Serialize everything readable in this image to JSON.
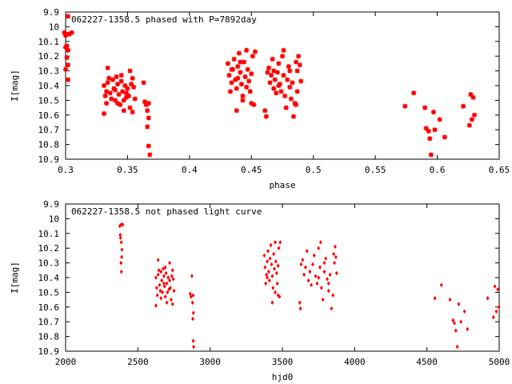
{
  "colors": {
    "points": "#ff0000",
    "axes": "#000000",
    "background": "#ffffff"
  },
  "chart_data": [
    {
      "type": "scatter",
      "title": "062227-1358.5 phased with P=7892day",
      "xlabel": "phase",
      "ylabel": "I[mag]",
      "xlim": [
        0.3,
        0.65
      ],
      "ylim": [
        9.9,
        10.9
      ],
      "y_inverted": true,
      "grid": false,
      "marker": "star",
      "x_ticks": [
        "0.3",
        "0.35",
        "0.4",
        "0.45",
        "0.5",
        "0.55",
        "0.6",
        "0.65"
      ],
      "y_ticks": [
        "9.9",
        "10",
        "10.1",
        "10.2",
        "10.3",
        "10.4",
        "10.5",
        "10.6",
        "10.7",
        "10.8",
        "10.9"
      ],
      "points": [
        [
          0.299,
          10.04
        ],
        [
          0.3,
          10.06
        ],
        [
          0.301,
          10.05
        ],
        [
          0.302,
          9.93
        ],
        [
          0.303,
          10.05
        ],
        [
          0.305,
          10.04
        ],
        [
          0.301,
          10.13
        ],
        [
          0.302,
          10.16
        ],
        [
          0.301,
          10.21
        ],
        [
          0.302,
          10.26
        ],
        [
          0.3,
          10.29
        ],
        [
          0.302,
          10.36
        ],
        [
          0.3,
          10.14
        ],
        [
          0.331,
          10.4
        ],
        [
          0.332,
          10.47
        ],
        [
          0.333,
          10.52
        ],
        [
          0.334,
          10.38
        ],
        [
          0.335,
          10.35
        ],
        [
          0.336,
          10.45
        ],
        [
          0.337,
          10.49
        ],
        [
          0.338,
          10.36
        ],
        [
          0.339,
          10.42
        ],
        [
          0.34,
          10.5
        ],
        [
          0.341,
          10.34
        ],
        [
          0.342,
          10.39
        ],
        [
          0.343,
          10.46
        ],
        [
          0.344,
          10.53
        ],
        [
          0.345,
          10.37
        ],
        [
          0.346,
          10.44
        ],
        [
          0.347,
          10.5
        ],
        [
          0.348,
          10.4
        ],
        [
          0.349,
          10.48
        ],
        [
          0.35,
          10.42
        ],
        [
          0.351,
          10.47
        ],
        [
          0.352,
          10.55
        ],
        [
          0.353,
          10.39
        ],
        [
          0.354,
          10.35
        ],
        [
          0.355,
          10.41
        ],
        [
          0.356,
          10.49
        ],
        [
          0.334,
          10.28
        ],
        [
          0.345,
          10.33
        ],
        [
          0.352,
          10.3
        ],
        [
          0.331,
          10.59
        ],
        [
          0.347,
          10.57
        ],
        [
          0.354,
          10.58
        ],
        [
          0.333,
          10.44
        ],
        [
          0.34,
          10.43
        ],
        [
          0.342,
          10.52
        ],
        [
          0.349,
          10.45
        ],
        [
          0.363,
          10.38
        ],
        [
          0.364,
          10.51
        ],
        [
          0.365,
          10.53
        ],
        [
          0.366,
          10.57
        ],
        [
          0.367,
          10.52
        ],
        [
          0.367,
          10.62
        ],
        [
          0.366,
          10.68
        ],
        [
          0.367,
          10.81
        ],
        [
          0.368,
          10.87
        ],
        [
          0.431,
          10.25
        ],
        [
          0.432,
          10.33
        ],
        [
          0.433,
          10.44
        ],
        [
          0.434,
          10.38
        ],
        [
          0.435,
          10.29
        ],
        [
          0.436,
          10.22
        ],
        [
          0.437,
          10.36
        ],
        [
          0.438,
          10.42
        ],
        [
          0.439,
          10.27
        ],
        [
          0.44,
          10.18
        ],
        [
          0.441,
          10.31
        ],
        [
          0.442,
          10.39
        ],
        [
          0.443,
          10.47
        ],
        [
          0.444,
          10.24
        ],
        [
          0.445,
          10.34
        ],
        [
          0.446,
          10.16
        ],
        [
          0.447,
          10.29
        ],
        [
          0.448,
          10.37
        ],
        [
          0.449,
          10.44
        ],
        [
          0.45,
          10.32
        ],
        [
          0.451,
          10.2
        ],
        [
          0.452,
          10.53
        ],
        [
          0.453,
          10.17
        ],
        [
          0.438,
          10.57
        ],
        [
          0.443,
          10.5
        ],
        [
          0.45,
          10.52
        ],
        [
          0.434,
          10.29
        ],
        [
          0.441,
          10.24
        ],
        [
          0.446,
          10.41
        ],
        [
          0.439,
          10.35
        ],
        [
          0.461,
          10.57
        ],
        [
          0.462,
          10.61
        ],
        [
          0.463,
          10.31
        ],
        [
          0.464,
          10.28
        ],
        [
          0.465,
          10.38
        ],
        [
          0.466,
          10.33
        ],
        [
          0.467,
          10.22
        ],
        [
          0.468,
          10.42
        ],
        [
          0.469,
          10.36
        ],
        [
          0.47,
          10.45
        ],
        [
          0.471,
          10.31
        ],
        [
          0.472,
          10.25
        ],
        [
          0.473,
          10.39
        ],
        [
          0.474,
          10.44
        ],
        [
          0.475,
          10.2
        ],
        [
          0.476,
          10.33
        ],
        [
          0.477,
          10.47
        ],
        [
          0.478,
          10.55
        ],
        [
          0.479,
          10.36
        ],
        [
          0.48,
          10.27
        ],
        [
          0.481,
          10.41
        ],
        [
          0.482,
          10.49
        ],
        [
          0.483,
          10.38
        ],
        [
          0.484,
          10.61
        ],
        [
          0.485,
          10.52
        ],
        [
          0.486,
          10.24
        ],
        [
          0.487,
          10.3
        ],
        [
          0.488,
          10.2
        ],
        [
          0.489,
          10.26
        ],
        [
          0.49,
          10.37
        ],
        [
          0.476,
          10.16
        ],
        [
          0.481,
          10.3
        ],
        [
          0.487,
          10.44
        ],
        [
          0.472,
          10.4
        ],
        [
          0.468,
          10.3
        ],
        [
          0.486,
          10.53
        ],
        [
          0.574,
          10.54
        ],
        [
          0.581,
          10.45
        ],
        [
          0.59,
          10.55
        ],
        [
          0.591,
          10.69
        ],
        [
          0.593,
          10.71
        ],
        [
          0.594,
          10.76
        ],
        [
          0.595,
          10.87
        ],
        [
          0.597,
          10.58
        ],
        [
          0.598,
          10.7
        ],
        [
          0.602,
          10.63
        ],
        [
          0.606,
          10.75
        ],
        [
          0.621,
          10.54
        ],
        [
          0.626,
          10.67
        ],
        [
          0.627,
          10.46
        ],
        [
          0.628,
          10.63
        ],
        [
          0.629,
          10.48
        ],
        [
          0.63,
          10.6
        ]
      ]
    },
    {
      "type": "scatter",
      "title": "062227-1358.5 not phased light curve",
      "xlabel": "hjd0",
      "ylabel": "I[mag]",
      "xlim": [
        2000,
        5000
      ],
      "ylim": [
        9.9,
        10.9
      ],
      "y_inverted": true,
      "grid": false,
      "marker": "dot",
      "x_ticks": [
        "2000",
        "2500",
        "3000",
        "3500",
        "4000",
        "4500",
        "5000"
      ],
      "y_ticks": [
        "9.9",
        "10",
        "10.1",
        "10.2",
        "10.3",
        "10.4",
        "10.5",
        "10.6",
        "10.7",
        "10.8",
        "10.9"
      ],
      "points": [
        [
          2375,
          10.05
        ],
        [
          2385,
          10.04
        ],
        [
          2395,
          10.04
        ],
        [
          2380,
          10.13
        ],
        [
          2385,
          10.16
        ],
        [
          2390,
          10.21
        ],
        [
          2388,
          10.26
        ],
        [
          2383,
          10.3
        ],
        [
          2386,
          10.36
        ],
        [
          2378,
          10.11
        ],
        [
          2625,
          10.4
        ],
        [
          2630,
          10.47
        ],
        [
          2635,
          10.52
        ],
        [
          2640,
          10.38
        ],
        [
          2645,
          10.35
        ],
        [
          2650,
          10.45
        ],
        [
          2655,
          10.49
        ],
        [
          2660,
          10.36
        ],
        [
          2665,
          10.42
        ],
        [
          2670,
          10.5
        ],
        [
          2675,
          10.34
        ],
        [
          2680,
          10.39
        ],
        [
          2685,
          10.46
        ],
        [
          2690,
          10.53
        ],
        [
          2695,
          10.37
        ],
        [
          2700,
          10.44
        ],
        [
          2705,
          10.5
        ],
        [
          2710,
          10.4
        ],
        [
          2715,
          10.48
        ],
        [
          2720,
          10.42
        ],
        [
          2725,
          10.47
        ],
        [
          2730,
          10.55
        ],
        [
          2735,
          10.39
        ],
        [
          2740,
          10.35
        ],
        [
          2745,
          10.41
        ],
        [
          2750,
          10.49
        ],
        [
          2640,
          10.28
        ],
        [
          2690,
          10.33
        ],
        [
          2720,
          10.3
        ],
        [
          2625,
          10.59
        ],
        [
          2700,
          10.57
        ],
        [
          2740,
          10.58
        ],
        [
          2660,
          10.54
        ],
        [
          2680,
          10.44
        ],
        [
          2862,
          10.51
        ],
        [
          2868,
          10.53
        ],
        [
          2874,
          10.39
        ],
        [
          2878,
          10.57
        ],
        [
          2882,
          10.52
        ],
        [
          2884,
          10.64
        ],
        [
          2880,
          10.68
        ],
        [
          2883,
          10.83
        ],
        [
          2886,
          10.87
        ],
        [
          3375,
          10.25
        ],
        [
          3380,
          10.33
        ],
        [
          3385,
          10.44
        ],
        [
          3390,
          10.38
        ],
        [
          3395,
          10.29
        ],
        [
          3400,
          10.22
        ],
        [
          3405,
          10.36
        ],
        [
          3410,
          10.42
        ],
        [
          3415,
          10.27
        ],
        [
          3420,
          10.18
        ],
        [
          3425,
          10.31
        ],
        [
          3430,
          10.39
        ],
        [
          3435,
          10.47
        ],
        [
          3440,
          10.24
        ],
        [
          3445,
          10.34
        ],
        [
          3450,
          10.16
        ],
        [
          3455,
          10.29
        ],
        [
          3460,
          10.37
        ],
        [
          3465,
          10.44
        ],
        [
          3470,
          10.32
        ],
        [
          3475,
          10.2
        ],
        [
          3480,
          10.53
        ],
        [
          3485,
          10.16
        ],
        [
          3430,
          10.57
        ],
        [
          3450,
          10.5
        ],
        [
          3470,
          10.52
        ],
        [
          3395,
          10.4
        ],
        [
          3620,
          10.57
        ],
        [
          3625,
          10.61
        ],
        [
          3630,
          10.31
        ],
        [
          3640,
          10.28
        ],
        [
          3650,
          10.38
        ],
        [
          3660,
          10.33
        ],
        [
          3670,
          10.22
        ],
        [
          3680,
          10.42
        ],
        [
          3690,
          10.36
        ],
        [
          3700,
          10.45
        ],
        [
          3710,
          10.31
        ],
        [
          3720,
          10.25
        ],
        [
          3730,
          10.39
        ],
        [
          3740,
          10.44
        ],
        [
          3750,
          10.2
        ],
        [
          3760,
          10.33
        ],
        [
          3770,
          10.47
        ],
        [
          3780,
          10.55
        ],
        [
          3790,
          10.36
        ],
        [
          3800,
          10.27
        ],
        [
          3810,
          10.41
        ],
        [
          3820,
          10.49
        ],
        [
          3830,
          10.38
        ],
        [
          3840,
          10.61
        ],
        [
          3850,
          10.52
        ],
        [
          3855,
          10.24
        ],
        [
          3860,
          10.3
        ],
        [
          3865,
          10.19
        ],
        [
          3870,
          10.26
        ],
        [
          3875,
          10.37
        ],
        [
          3765,
          10.16
        ],
        [
          3790,
          10.3
        ],
        [
          3820,
          10.44
        ],
        [
          3750,
          10.4
        ],
        [
          4555,
          10.54
        ],
        [
          4600,
          10.45
        ],
        [
          4660,
          10.55
        ],
        [
          4680,
          10.69
        ],
        [
          4690,
          10.71
        ],
        [
          4700,
          10.76
        ],
        [
          4710,
          10.87
        ],
        [
          4720,
          10.58
        ],
        [
          4735,
          10.7
        ],
        [
          4760,
          10.63
        ],
        [
          4780,
          10.75
        ],
        [
          4920,
          10.54
        ],
        [
          4960,
          10.67
        ],
        [
          4970,
          10.46
        ],
        [
          4980,
          10.63
        ],
        [
          4990,
          10.48
        ],
        [
          4998,
          10.6
        ]
      ]
    }
  ]
}
